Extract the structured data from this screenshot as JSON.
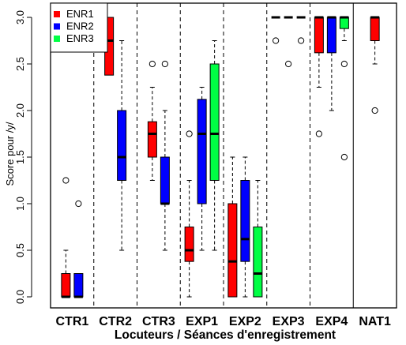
{
  "chart_data": {
    "type": "boxplot",
    "title": "",
    "xlabel": "Locuteurs / Séances d'enregistrement",
    "ylabel": "Score pour /y/",
    "ylim": [
      -0.1,
      3.08
    ],
    "yticks": [
      "0.0",
      "0.5",
      "1.0",
      "1.5",
      "2.0",
      "2.5",
      "3.0"
    ],
    "ytick_values": [
      0,
      0.5,
      1.0,
      1.5,
      2.0,
      2.5,
      3.0
    ],
    "categories": [
      "CTR1",
      "CTR2",
      "CTR3",
      "EXP1",
      "EXP2",
      "EXP3",
      "EXP4",
      "NAT1"
    ],
    "legend": {
      "placement": "top-left",
      "entries": [
        {
          "name": "ENR1",
          "color": "#ff0000"
        },
        {
          "name": "ENR2",
          "color": "#0000ff"
        },
        {
          "name": "ENR3",
          "color": "#00ff44"
        }
      ]
    },
    "groups": [
      {
        "category": "CTR1",
        "boxes": [
          {
            "series": "ENR1",
            "min": 0,
            "q1": 0,
            "median": 0,
            "q3": 0.25,
            "max": 0.5,
            "outliers": [
              1.25
            ]
          },
          {
            "series": "ENR2",
            "min": 0,
            "q1": 0,
            "median": 0,
            "q3": 0.25,
            "max": 0.25,
            "outliers": [
              1.0
            ]
          }
        ]
      },
      {
        "category": "CTR2",
        "boxes": [
          {
            "series": "ENR1",
            "min": 2.38,
            "q1": 2.38,
            "median": 2.75,
            "q3": 3.0,
            "max": 3.0,
            "outliers": []
          },
          {
            "series": "ENR2",
            "min": 0.5,
            "q1": 1.25,
            "median": 1.5,
            "q3": 2.0,
            "max": 2.75,
            "outliers": []
          }
        ]
      },
      {
        "category": "CTR3",
        "boxes": [
          {
            "series": "ENR1",
            "min": 1.25,
            "q1": 1.5,
            "median": 1.75,
            "q3": 1.88,
            "max": 2.25,
            "outliers": [
              2.5
            ]
          },
          {
            "series": "ENR2",
            "min": 0.5,
            "q1": 1.0,
            "median": 1.0,
            "q3": 1.5,
            "max": 2.0,
            "outliers": [
              2.5
            ]
          }
        ]
      },
      {
        "category": "EXP1",
        "boxes": [
          {
            "series": "ENR1",
            "min": 0,
            "q1": 0.38,
            "median": 0.5,
            "q3": 0.75,
            "max": 1.25,
            "outliers": [
              1.75
            ]
          },
          {
            "series": "ENR2",
            "min": 0.5,
            "q1": 1.0,
            "median": 1.75,
            "q3": 2.12,
            "max": 2.25,
            "outliers": []
          },
          {
            "series": "ENR3",
            "min": 0.5,
            "q1": 1.25,
            "median": 1.75,
            "q3": 2.5,
            "max": 2.75,
            "outliers": []
          }
        ]
      },
      {
        "category": "EXP2",
        "boxes": [
          {
            "series": "ENR1",
            "min": 0,
            "q1": 0,
            "median": 0.38,
            "q3": 1.0,
            "max": 1.5,
            "outliers": []
          },
          {
            "series": "ENR2",
            "min": 0,
            "q1": 0.38,
            "median": 0.62,
            "q3": 1.25,
            "max": 1.5,
            "outliers": []
          },
          {
            "series": "ENR3",
            "min": 0,
            "q1": 0,
            "median": 0.25,
            "q3": 0.75,
            "max": 1.25,
            "outliers": []
          }
        ]
      },
      {
        "category": "EXP3",
        "boxes": [
          {
            "series": "ENR1",
            "min": 3.0,
            "q1": 3.0,
            "median": 3.0,
            "q3": 3.0,
            "max": 3.0,
            "outliers": [
              2.75
            ]
          },
          {
            "series": "ENR2",
            "min": 3.0,
            "q1": 3.0,
            "median": 3.0,
            "q3": 3.0,
            "max": 3.0,
            "outliers": [
              2.5
            ]
          },
          {
            "series": "ENR3",
            "min": 3.0,
            "q1": 3.0,
            "median": 3.0,
            "q3": 3.0,
            "max": 3.0,
            "outliers": [
              2.75
            ]
          }
        ]
      },
      {
        "category": "EXP4",
        "boxes": [
          {
            "series": "ENR1",
            "min": 2.25,
            "q1": 2.62,
            "median": 3.0,
            "q3": 3.0,
            "max": 3.0,
            "outliers": [
              1.75
            ]
          },
          {
            "series": "ENR2",
            "min": 2.0,
            "q1": 2.62,
            "median": 3.0,
            "q3": 3.0,
            "max": 3.0,
            "outliers": []
          },
          {
            "series": "ENR3",
            "min": 2.75,
            "q1": 2.88,
            "median": 3.0,
            "q3": 3.0,
            "max": 3.0,
            "outliers": [
              2.5,
              1.5
            ]
          }
        ]
      },
      {
        "category": "NAT1",
        "boxes": [
          {
            "series": "ENR1",
            "min": 2.5,
            "q1": 2.75,
            "median": 3.0,
            "q3": 3.0,
            "max": 3.0,
            "outliers": [
              2.0
            ]
          }
        ]
      }
    ]
  }
}
